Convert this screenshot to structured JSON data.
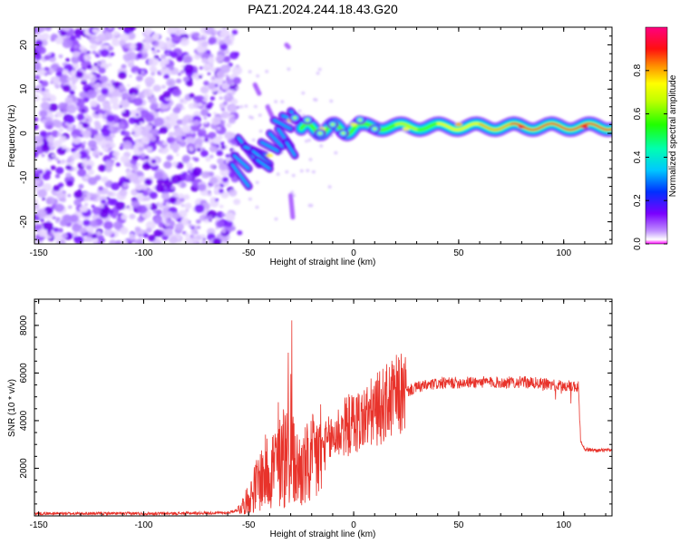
{
  "title": "PAZ1.2024.244.18.43.G20",
  "colors": {
    "snr_line": "#e8332b",
    "low_noise": "#7a00ff",
    "mid": "#00e3ff",
    "high": "#ff2222"
  },
  "chart_data": [
    {
      "type": "heatmap",
      "name": "spectrogram",
      "xlabel": "Height of straight line (km)",
      "ylabel": "Frequency (Hz)",
      "xlim": [
        -152,
        123
      ],
      "ylim": [
        -25,
        24
      ],
      "xticks": [
        -150,
        -100,
        -50,
        0,
        50,
        100
      ],
      "yticks": [
        -20,
        -10,
        0,
        10,
        20
      ],
      "colorbar": {
        "label": "Normalized spectral amplitude",
        "ticks": [
          "0.0",
          "0.2",
          "0.4",
          "0.6",
          "0.8"
        ],
        "range": [
          0,
          1
        ],
        "colormap": "hsv"
      },
      "description_points": [
        {
          "height_km": -40,
          "freq_hz": -5,
          "amplitude": 0.25
        },
        {
          "height_km": -30,
          "freq_hz": 3,
          "amplitude": 0.35
        },
        {
          "height_km": -15,
          "freq_hz": 1,
          "amplitude": 0.45
        },
        {
          "height_km": 0,
          "freq_hz": 2,
          "amplitude": 0.55
        },
        {
          "height_km": 25,
          "freq_hz": 1,
          "amplitude": 0.6
        },
        {
          "height_km": 50,
          "freq_hz": 2,
          "amplitude": 0.75
        },
        {
          "height_km": 80,
          "freq_hz": 1.5,
          "amplitude": 0.9
        },
        {
          "height_km": 110,
          "freq_hz": 1.5,
          "amplitude": 1.0
        }
      ]
    },
    {
      "type": "line",
      "name": "snr",
      "xlabel": "Height of straight line (km)",
      "ylabel": "SNR (10 * v/v)",
      "xlim": [
        -152,
        123
      ],
      "ylim": [
        0,
        9100
      ],
      "xticks": [
        -150,
        -100,
        -50,
        0,
        50,
        100
      ],
      "yticks": [
        2000,
        4000,
        6000,
        8000
      ],
      "x": [
        -152,
        -120,
        -90,
        -60,
        -55,
        -50,
        -45,
        -40,
        -35,
        -30,
        -28,
        -25,
        -20,
        -15,
        -10,
        -5,
        0,
        5,
        10,
        15,
        20,
        25,
        30,
        40,
        50,
        60,
        70,
        80,
        90,
        100,
        105,
        107,
        108,
        110,
        115,
        123
      ],
      "y": [
        100,
        100,
        100,
        130,
        250,
        700,
        1500,
        2000,
        2300,
        2600,
        2000,
        1900,
        2200,
        2800,
        3300,
        3700,
        3900,
        4100,
        4400,
        4700,
        5000,
        5200,
        5400,
        5550,
        5600,
        5620,
        5600,
        5620,
        5550,
        5450,
        5450,
        5400,
        3200,
        2800,
        2750,
        2750
      ]
    }
  ]
}
